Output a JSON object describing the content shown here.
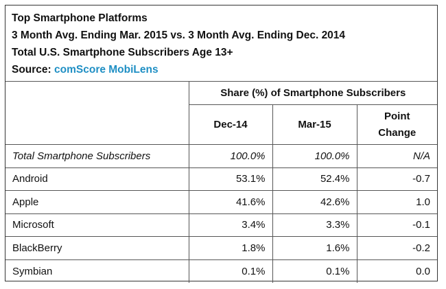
{
  "header": {
    "title": "Top Smartphone Platforms",
    "subtitle": "3 Month Avg. Ending Mar. 2015 vs. 3 Month Avg. Ending Dec. 2014",
    "population": "Total U.S. Smartphone Subscribers Age 13+",
    "source_label": "Source: ",
    "source_name": "comScore MobiLens"
  },
  "table": {
    "group_header": "Share (%) of Smartphone Subscribers",
    "col_dec": "Dec-14",
    "col_mar": "Mar-15",
    "col_change": "Point Change",
    "rows": [
      {
        "platform": "Total Smartphone Subscribers",
        "dec": "100.0%",
        "mar": "100.0%",
        "change": "N/A"
      },
      {
        "platform": "Android",
        "dec": "53.1%",
        "mar": "52.4%",
        "change": "-0.7"
      },
      {
        "platform": "Apple",
        "dec": "41.6%",
        "mar": "42.6%",
        "change": "1.0"
      },
      {
        "platform": "Microsoft",
        "dec": "3.4%",
        "mar": "3.3%",
        "change": "-0.1"
      },
      {
        "platform": "BlackBerry",
        "dec": "1.8%",
        "mar": "1.6%",
        "change": "-0.2"
      },
      {
        "platform": "Symbian",
        "dec": "0.1%",
        "mar": "0.1%",
        "change": "0.0"
      }
    ]
  },
  "chart_data": {
    "type": "table",
    "title": "Top Smartphone Platforms",
    "columns": [
      "Dec-14",
      "Mar-15",
      "Point Change"
    ],
    "rows": [
      {
        "platform": "Total Smartphone Subscribers",
        "dec": 100.0,
        "mar": 100.0,
        "change": "N/A"
      },
      {
        "platform": "Android",
        "dec": 53.1,
        "mar": 52.4,
        "change": -0.7
      },
      {
        "platform": "Apple",
        "dec": 41.6,
        "mar": 42.6,
        "change": 1.0
      },
      {
        "platform": "Microsoft",
        "dec": 3.4,
        "mar": 3.3,
        "change": -0.1
      },
      {
        "platform": "BlackBerry",
        "dec": 1.8,
        "mar": 1.6,
        "change": -0.2
      },
      {
        "platform": "Symbian",
        "dec": 0.1,
        "mar": 0.1,
        "change": 0.0
      }
    ]
  }
}
